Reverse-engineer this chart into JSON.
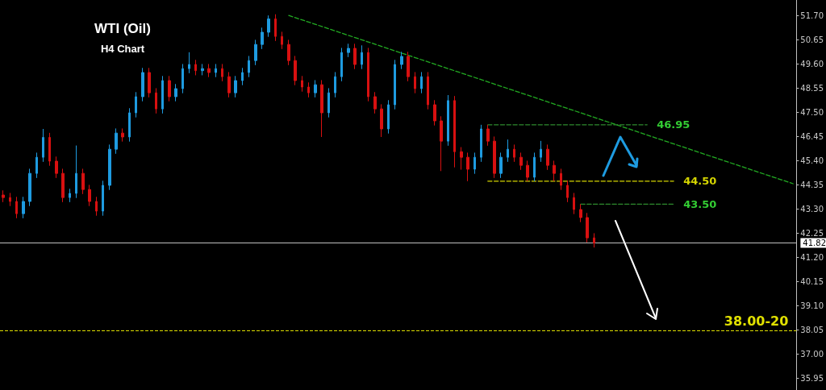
{
  "chart_data": {
    "type": "candlestick",
    "title": "WTI (Oil)",
    "subtitle": "H4 Chart",
    "categories": [
      null,
      null,
      null,
      null,
      null,
      null,
      null,
      null,
      null,
      null,
      null,
      null,
      null,
      null,
      null,
      null,
      null,
      null,
      null,
      null,
      null,
      null,
      null,
      null,
      null,
      null,
      null,
      null,
      null,
      null,
      null,
      null,
      null,
      null,
      null,
      null,
      null,
      null,
      null,
      null,
      null,
      null,
      null,
      null,
      null,
      null,
      null,
      null,
      null,
      null,
      null,
      null,
      null,
      null,
      null,
      null,
      null,
      null,
      null,
      null,
      null,
      null,
      null,
      null,
      null,
      null,
      null,
      null,
      null,
      null,
      null,
      null,
      null,
      null,
      null,
      null,
      null,
      null,
      null,
      null,
      null,
      null,
      null,
      null,
      null,
      null,
      null,
      null,
      null,
      null,
      null,
      null,
      null,
      null,
      null,
      null,
      null,
      null,
      null,
      null,
      null,
      null,
      null,
      null,
      null,
      null,
      null,
      null,
      null,
      null,
      null,
      null,
      null,
      null,
      null,
      null,
      null,
      null,
      null,
      null
    ],
    "ohlc": [
      [
        43.9,
        44.1,
        43.59,
        43.79
      ],
      [
        43.79,
        43.99,
        43.42,
        43.62
      ],
      [
        43.62,
        43.82,
        42.89,
        43.09
      ],
      [
        43.09,
        43.82,
        42.89,
        43.62
      ],
      [
        43.62,
        45.04,
        43.42,
        44.84
      ],
      [
        44.84,
        45.74,
        44.64,
        45.54
      ],
      [
        45.54,
        46.77,
        45.34,
        46.4
      ],
      [
        46.4,
        46.6,
        45.17,
        45.37
      ],
      [
        45.37,
        45.57,
        44.64,
        44.84
      ],
      [
        44.84,
        45.04,
        43.59,
        43.79
      ],
      [
        43.79,
        44.17,
        43.59,
        43.97
      ],
      [
        43.97,
        46.05,
        43.77,
        44.84
      ],
      [
        44.84,
        45.04,
        43.94,
        44.14
      ],
      [
        44.14,
        44.34,
        43.42,
        43.62
      ],
      [
        43.62,
        43.82,
        43.0,
        43.2
      ],
      [
        43.2,
        44.52,
        43.0,
        44.32
      ],
      [
        44.32,
        46.09,
        44.12,
        45.89
      ],
      [
        45.89,
        46.79,
        45.69,
        46.59
      ],
      [
        46.59,
        46.79,
        46.22,
        46.42
      ],
      [
        46.42,
        47.67,
        46.22,
        47.47
      ],
      [
        47.47,
        48.37,
        47.27,
        48.17
      ],
      [
        48.17,
        49.42,
        47.97,
        49.22
      ],
      [
        49.22,
        49.42,
        48.14,
        48.34
      ],
      [
        48.34,
        48.54,
        47.44,
        47.64
      ],
      [
        47.64,
        49.07,
        47.44,
        48.87
      ],
      [
        48.87,
        49.07,
        47.97,
        48.17
      ],
      [
        48.17,
        48.72,
        47.97,
        48.52
      ],
      [
        48.52,
        49.59,
        48.32,
        49.39
      ],
      [
        49.39,
        50.1,
        49.19,
        49.57
      ],
      [
        49.57,
        49.77,
        49.1,
        49.3
      ],
      [
        49.3,
        49.59,
        49.1,
        49.39
      ],
      [
        49.39,
        49.59,
        49.02,
        49.22
      ],
      [
        49.22,
        49.59,
        49.02,
        49.39
      ],
      [
        49.39,
        49.59,
        48.84,
        49.04
      ],
      [
        49.04,
        49.24,
        48.14,
        48.34
      ],
      [
        48.34,
        49.07,
        48.14,
        48.87
      ],
      [
        48.87,
        49.42,
        48.67,
        49.22
      ],
      [
        49.22,
        49.94,
        49.02,
        49.74
      ],
      [
        49.74,
        50.64,
        49.54,
        50.44
      ],
      [
        50.44,
        51.17,
        50.24,
        50.97
      ],
      [
        50.97,
        51.7,
        50.77,
        51.55
      ],
      [
        51.55,
        51.75,
        50.59,
        50.79
      ],
      [
        50.79,
        50.99,
        50.24,
        50.44
      ],
      [
        50.44,
        50.64,
        49.54,
        49.74
      ],
      [
        49.74,
        49.94,
        48.67,
        48.87
      ],
      [
        48.87,
        49.07,
        48.39,
        48.59
      ],
      [
        48.59,
        48.79,
        48.14,
        48.34
      ],
      [
        48.34,
        48.89,
        48.14,
        48.69
      ],
      [
        48.69,
        48.89,
        46.42,
        47.47
      ],
      [
        47.47,
        48.54,
        47.27,
        48.34
      ],
      [
        48.34,
        49.24,
        48.14,
        49.04
      ],
      [
        49.04,
        50.29,
        48.84,
        50.09
      ],
      [
        50.09,
        50.47,
        49.89,
        50.27
      ],
      [
        50.27,
        50.47,
        49.37,
        49.57
      ],
      [
        49.57,
        50.4,
        49.37,
        50.09
      ],
      [
        50.09,
        50.29,
        47.97,
        48.17
      ],
      [
        48.17,
        48.37,
        47.44,
        47.64
      ],
      [
        47.64,
        47.84,
        46.42,
        46.77
      ],
      [
        46.77,
        48.02,
        46.57,
        47.82
      ],
      [
        47.82,
        49.77,
        47.62,
        49.57
      ],
      [
        49.57,
        50.12,
        49.37,
        49.92
      ],
      [
        49.92,
        50.12,
        48.84,
        49.04
      ],
      [
        49.04,
        49.24,
        48.32,
        48.52
      ],
      [
        48.52,
        49.24,
        48.32,
        49.04
      ],
      [
        49.04,
        49.24,
        47.62,
        47.82
      ],
      [
        47.82,
        48.02,
        46.92,
        47.12
      ],
      [
        47.12,
        47.32,
        44.94,
        46.24
      ],
      [
        46.24,
        48.24,
        46.04,
        48.0
      ],
      [
        48.0,
        48.2,
        45.1,
        45.78
      ],
      [
        45.78,
        45.98,
        45.0,
        45.54
      ],
      [
        45.54,
        45.74,
        44.5,
        45.02
      ],
      [
        45.02,
        45.74,
        44.82,
        45.54
      ],
      [
        45.54,
        46.95,
        45.34,
        46.77
      ],
      [
        46.77,
        46.95,
        46.04,
        46.24
      ],
      [
        46.24,
        46.44,
        44.64,
        44.84
      ],
      [
        44.84,
        45.74,
        44.64,
        45.54
      ],
      [
        45.54,
        46.31,
        45.34,
        45.89
      ],
      [
        45.89,
        46.09,
        45.34,
        45.54
      ],
      [
        45.54,
        45.74,
        44.99,
        45.19
      ],
      [
        45.19,
        45.39,
        44.5,
        44.67
      ],
      [
        44.67,
        45.74,
        44.5,
        45.54
      ],
      [
        45.54,
        46.25,
        45.34,
        45.89
      ],
      [
        45.89,
        46.09,
        44.99,
        45.19
      ],
      [
        45.19,
        45.39,
        44.5,
        44.84
      ],
      [
        44.84,
        45.04,
        44.12,
        44.32
      ],
      [
        44.32,
        44.52,
        43.59,
        43.79
      ],
      [
        43.79,
        43.99,
        43.07,
        43.27
      ],
      [
        43.27,
        43.5,
        42.72,
        42.92
      ],
      [
        42.92,
        43.12,
        41.84,
        42.04
      ],
      [
        42.04,
        42.24,
        41.62,
        41.82
      ],
      null,
      null,
      null,
      null,
      null,
      null,
      null,
      null,
      null,
      null,
      null,
      null,
      null,
      null,
      null,
      null,
      null,
      null,
      null,
      null,
      null,
      null,
      null,
      null,
      null,
      null,
      null,
      null,
      null,
      null
    ],
    "series": [
      {
        "type": "line",
        "color": "#22aa22",
        "line_style": "dashed",
        "values": [
          null,
          null,
          null,
          null,
          null,
          null,
          null,
          null,
          null,
          null,
          null,
          null,
          null,
          null,
          null,
          null,
          null,
          null,
          null,
          null,
          null,
          null,
          null,
          null,
          null,
          null,
          null,
          null,
          null,
          null,
          null,
          null,
          null,
          null,
          null,
          null,
          null,
          null,
          null,
          null,
          null,
          null,
          null,
          51.7,
          null,
          null,
          null,
          null,
          null,
          null,
          null,
          null,
          null,
          null,
          null,
          null,
          null,
          null,
          null,
          null,
          null,
          null,
          null,
          null,
          null,
          null,
          null,
          null,
          null,
          null,
          null,
          null,
          null,
          null,
          null,
          null,
          null,
          null,
          null,
          null,
          null,
          null,
          null,
          null,
          null,
          null,
          null,
          null,
          null,
          null,
          null,
          null,
          null,
          null,
          null,
          null,
          null,
          null,
          null,
          null,
          null,
          null,
          null,
          null,
          null,
          null,
          null,
          null,
          null,
          null,
          null,
          null,
          null,
          null,
          null,
          null,
          null,
          null,
          null,
          44.39
        ]
      },
      {
        "type": "line",
        "name": "46.95",
        "color": "#2e8b2e",
        "line_style": "dashed",
        "values": [
          null,
          null,
          null,
          null,
          null,
          null,
          null,
          null,
          null,
          null,
          null,
          null,
          null,
          null,
          null,
          null,
          null,
          null,
          null,
          null,
          null,
          null,
          null,
          null,
          null,
          null,
          null,
          null,
          null,
          null,
          null,
          null,
          null,
          null,
          null,
          null,
          null,
          null,
          null,
          null,
          null,
          null,
          null,
          null,
          null,
          null,
          null,
          null,
          null,
          null,
          null,
          null,
          null,
          null,
          null,
          null,
          null,
          null,
          null,
          null,
          null,
          null,
          null,
          null,
          null,
          null,
          null,
          null,
          null,
          null,
          null,
          null,
          null,
          46.95,
          null,
          null,
          null,
          null,
          null,
          null,
          null,
          null,
          null,
          null,
          null,
          null,
          null,
          null,
          null,
          null,
          null,
          null,
          null,
          null,
          null,
          null,
          null,
          46.95,
          null,
          null,
          null,
          null,
          null,
          null,
          null,
          null,
          null,
          null,
          null,
          null,
          null,
          null,
          null,
          null,
          null,
          null,
          null,
          null,
          null,
          null
        ]
      },
      {
        "type": "line",
        "name": "44.50",
        "color": "#d4d400",
        "line_style": "dashed",
        "values": [
          null,
          null,
          null,
          null,
          null,
          null,
          null,
          null,
          null,
          null,
          null,
          null,
          null,
          null,
          null,
          null,
          null,
          null,
          null,
          null,
          null,
          null,
          null,
          null,
          null,
          null,
          null,
          null,
          null,
          null,
          null,
          null,
          null,
          null,
          null,
          null,
          null,
          null,
          null,
          null,
          null,
          null,
          null,
          null,
          null,
          null,
          null,
          null,
          null,
          null,
          null,
          null,
          null,
          null,
          null,
          null,
          null,
          null,
          null,
          null,
          null,
          null,
          null,
          null,
          null,
          null,
          null,
          null,
          null,
          null,
          null,
          null,
          null,
          44.5,
          null,
          null,
          null,
          null,
          null,
          null,
          null,
          null,
          null,
          null,
          null,
          null,
          null,
          null,
          null,
          null,
          null,
          null,
          null,
          null,
          null,
          null,
          null,
          null,
          null,
          null,
          null,
          44.5,
          null,
          null,
          null,
          null,
          null,
          null,
          null,
          null,
          null,
          null,
          null,
          null,
          null,
          null,
          null,
          null,
          null,
          null
        ]
      },
      {
        "type": "line",
        "name": "43.50",
        "color": "#2e8b2e",
        "line_style": "dashed",
        "values": [
          null,
          null,
          null,
          null,
          null,
          null,
          null,
          null,
          null,
          null,
          null,
          null,
          null,
          null,
          null,
          null,
          null,
          null,
          null,
          null,
          null,
          null,
          null,
          null,
          null,
          null,
          null,
          null,
          null,
          null,
          null,
          null,
          null,
          null,
          null,
          null,
          null,
          null,
          null,
          null,
          null,
          null,
          null,
          null,
          null,
          null,
          null,
          null,
          null,
          null,
          null,
          null,
          null,
          null,
          null,
          null,
          null,
          null,
          null,
          null,
          null,
          null,
          null,
          null,
          null,
          null,
          null,
          null,
          null,
          null,
          null,
          null,
          null,
          null,
          null,
          null,
          null,
          null,
          null,
          null,
          null,
          null,
          null,
          null,
          null,
          null,
          null,
          43.5,
          null,
          null,
          null,
          null,
          null,
          null,
          null,
          null,
          null,
          null,
          null,
          null,
          null,
          43.5,
          null,
          null,
          null,
          null,
          null,
          null,
          null,
          null,
          null,
          null,
          null,
          null,
          null,
          null,
          null,
          null,
          null,
          null
        ]
      }
    ],
    "ref_lines": [
      {
        "axis": "y",
        "value": 41.82,
        "label": "41.82",
        "color": "#c0c0c0",
        "line_style": "solid"
      },
      {
        "axis": "y",
        "value": 38.0,
        "label": "38.00-20",
        "color": "#e0e000",
        "line_style": "dashed"
      }
    ],
    "ylim": [
      35.43,
      52.37
    ],
    "yticks": [
      {
        "value": 51.7,
        "label": "51.70"
      },
      50.65,
      {
        "value": 49.6,
        "label": "49.60"
      },
      48.55,
      {
        "value": 47.5,
        "label": "47.50"
      },
      46.45,
      {
        "value": 45.4,
        "label": "45.40"
      },
      44.35,
      {
        "value": 43.3,
        "label": "43.30"
      },
      42.25,
      {
        "value": 41.2,
        "label": "41.20"
      },
      40.15,
      {
        "value": 39.1,
        "label": "39.10"
      },
      38.05,
      {
        "value": 37,
        "label": "37.00"
      },
      35.95
    ],
    "tick_labels": "y",
    "grid": false,
    "legend": false
  }
}
